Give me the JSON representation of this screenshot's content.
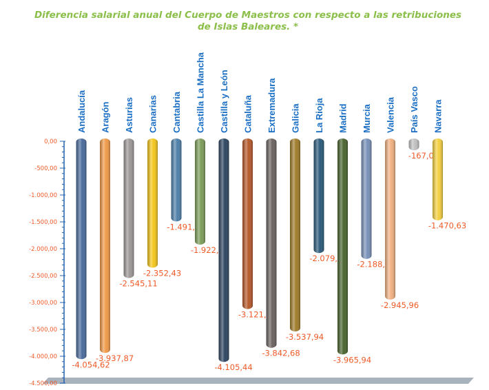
{
  "chart_data": {
    "type": "bar",
    "title": "Diferencia salarial anual del Cuerpo de Maestros con respecto a las retribuciones de Islas Baleares. *",
    "categories": [
      "Andalucía",
      "Aragón",
      "Asturias",
      "Canarias",
      "Cantabria",
      "Castilla La Mancha",
      "Castilla y León",
      "Cataluña",
      "Extremadura",
      "Galicia",
      "La Rioja",
      "Madrid",
      "Murcia",
      "Valencia",
      "País Vasco",
      "Navarra"
    ],
    "values": [
      -4054.62,
      -3937.87,
      -2545.11,
      -2352.43,
      -1491.42,
      -1922.88,
      -4105.44,
      -3121.28,
      -3842.68,
      -3537.94,
      -2079.52,
      -3965.94,
      -2188.62,
      -2945.96,
      -167.03,
      -1470.63
    ],
    "value_labels": [
      "-4.054,62",
      "-3.937,87",
      "-2.545,11",
      "-2.352,43",
      "-1.491,42",
      "-1.922,88",
      "-4.105,44",
      "-3.121,28",
      "-3.842,68",
      "-3.537,94",
      "-2.079,52",
      "-3.965,94",
      "-2.188,62",
      "-2.945,96",
      "-167,03",
      "-1.470,63"
    ],
    "colors": [
      "#4a6a9c",
      "#f09a48",
      "#9c9696",
      "#f3c51b",
      "#4d7fa8",
      "#7c9c58",
      "#2d4560",
      "#b5582a",
      "#6a6260",
      "#a07c2a",
      "#2a5a7a",
      "#4a6430",
      "#7890b8",
      "#f0b080",
      "#c0c0c0",
      "#f3cf40"
    ],
    "ylim": [
      -4500,
      0
    ],
    "y_ticks": [
      0,
      -500,
      -1000,
      -1500,
      -2000,
      -2500,
      -3000,
      -3500,
      -4000,
      -4500
    ],
    "y_tick_labels": [
      "0,00",
      "-500,00",
      "-1.000,00",
      "-1.500,00",
      "-2.000,00",
      "-2.500,00",
      "-3.000,00",
      "-3.500,00",
      "-4.000,00",
      "-4.500,00"
    ],
    "label_color": "#f05a28",
    "category_label_color": "#1a6fc4",
    "axis_color": "#2060b0",
    "title_color": "#8bbf4a",
    "xlabel": "",
    "ylabel": "",
    "grid": false,
    "legend": "none"
  }
}
